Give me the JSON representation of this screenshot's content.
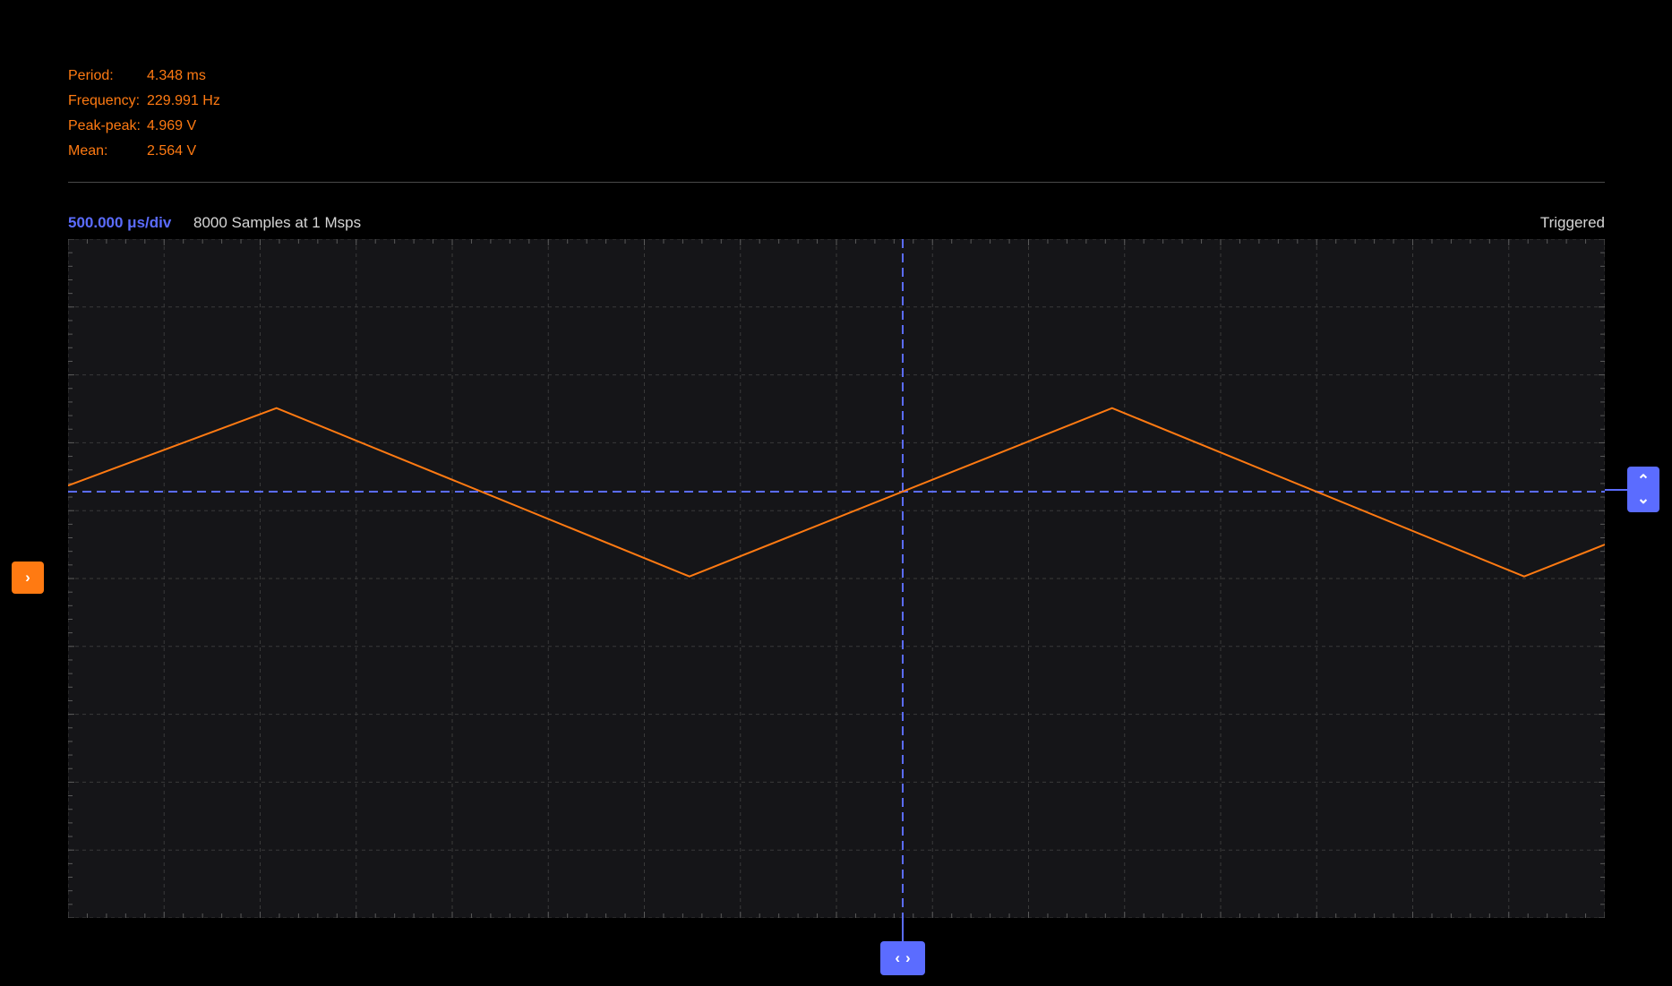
{
  "measurements": [
    {
      "label": "Period:",
      "value": "4.348 ms"
    },
    {
      "label": "Frequency:",
      "value": "229.991 Hz"
    },
    {
      "label": "Peak-peak:",
      "value": "4.969 V"
    },
    {
      "label": "Mean:",
      "value": "2.564 V"
    }
  ],
  "header": {
    "timebase": "500.000 μs/div",
    "samples": "8000 Samples at 1 Msps",
    "status": "Triggered"
  },
  "colors": {
    "background": "#000000",
    "plot_bg": "#151518",
    "grid": "#3a3a3a",
    "signal": "#ff7a12",
    "trigger": "#5b6cff",
    "text": "#d6d6d6"
  },
  "handles": {
    "offset_icon": "chevron-right-icon",
    "trigger_level_icons": [
      "chevron-up-icon",
      "chevron-down-icon"
    ],
    "trigger_time_icons": [
      "chevron-left-icon",
      "chevron-right-icon"
    ]
  },
  "waveform": {
    "type": "triangle",
    "time_per_div_us": 500,
    "div_x": 16,
    "div_y": 10,
    "x_min_div": 0,
    "x_max_div": 16,
    "points": [
      {
        "t_div": 0.0,
        "y_div": 6.37
      },
      {
        "t_div": 2.17,
        "y_div": 7.51
      },
      {
        "t_div": 6.47,
        "y_div": 5.03
      },
      {
        "t_div": 10.87,
        "y_div": 7.51
      },
      {
        "t_div": 15.16,
        "y_div": 5.03
      },
      {
        "t_div": 16.0,
        "y_div": 5.5
      }
    ],
    "trigger_level_y_div": 6.28,
    "trigger_time_div": 8.69
  }
}
